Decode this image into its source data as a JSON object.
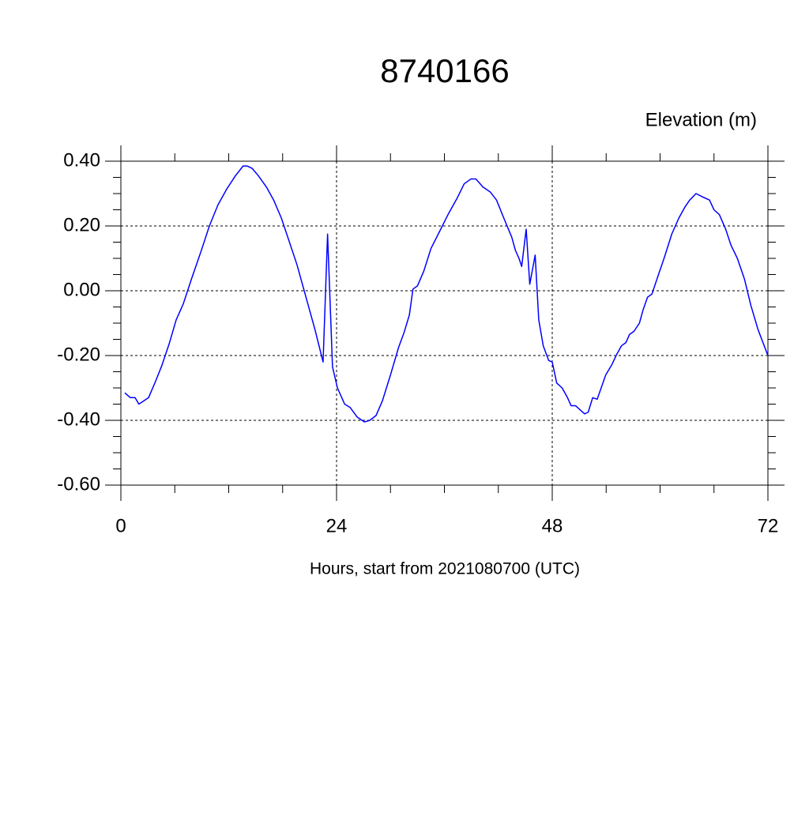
{
  "chart_data": {
    "type": "line",
    "title": "8740166",
    "y_label": "Elevation (m)",
    "x_label": "Hours, start from 2021080700 (UTC)",
    "x": [
      0.44,
      1.05,
      1.58,
      2.0,
      2.55,
      3.08,
      3.78,
      4.57,
      5.36,
      6.15,
      6.95,
      7.9,
      8.9,
      9.85,
      10.8,
      11.8,
      12.75,
      13.6,
      14.07,
      14.6,
      15.3,
      16.2,
      17.0,
      17.85,
      18.7,
      19.6,
      20.65,
      21.6,
      22.5,
      23.0,
      23.55,
      24.1,
      24.9,
      25.5,
      26.3,
      27.1,
      27.7,
      28.4,
      29.1,
      30.0,
      30.9,
      31.5,
      32.1,
      32.5,
      33.0,
      33.7,
      34.5,
      35.5,
      36.4,
      37.4,
      38.2,
      38.95,
      39.5,
      40.3,
      41.1,
      41.8,
      42.6,
      43.5,
      43.9,
      44.3,
      44.6,
      45.1,
      45.5,
      46.1,
      46.5,
      47.0,
      47.6,
      48.0,
      48.5,
      49.1,
      49.7,
      50.1,
      50.6,
      51.2,
      51.6,
      52.0,
      52.5,
      53.0,
      53.95,
      54.6,
      55.2,
      55.7,
      56.2,
      56.6,
      57.1,
      57.7,
      58.1,
      58.6,
      59.1,
      59.7,
      60.5,
      61.3,
      62.1,
      62.8,
      63.3,
      64.0,
      64.7,
      65.5,
      66.0,
      66.6,
      67.3,
      67.9,
      68.6,
      69.4,
      70.1,
      70.9,
      72.0
    ],
    "series": [
      {
        "color": "#0000ff",
        "values": [
          -0.315,
          -0.33,
          -0.33,
          -0.35,
          -0.34,
          -0.33,
          -0.285,
          -0.23,
          -0.165,
          -0.09,
          -0.04,
          0.04,
          0.12,
          0.2,
          0.265,
          0.315,
          0.355,
          0.385,
          0.385,
          0.378,
          0.355,
          0.32,
          0.28,
          0.225,
          0.155,
          0.08,
          -0.025,
          -0.12,
          -0.22,
          0.175,
          -0.235,
          -0.3,
          -0.35,
          -0.36,
          -0.39,
          -0.405,
          -0.4,
          -0.385,
          -0.34,
          -0.26,
          -0.175,
          -0.13,
          -0.075,
          0.005,
          0.015,
          0.06,
          0.13,
          0.185,
          0.235,
          0.285,
          0.33,
          0.345,
          0.345,
          0.32,
          0.305,
          0.28,
          0.225,
          0.165,
          0.125,
          0.1,
          0.075,
          0.19,
          0.02,
          0.11,
          -0.09,
          -0.17,
          -0.215,
          -0.22,
          -0.285,
          -0.3,
          -0.33,
          -0.355,
          -0.355,
          -0.37,
          -0.38,
          -0.375,
          -0.33,
          -0.335,
          -0.26,
          -0.23,
          -0.195,
          -0.17,
          -0.16,
          -0.135,
          -0.125,
          -0.1,
          -0.06,
          -0.02,
          -0.01,
          0.04,
          0.105,
          0.175,
          0.225,
          0.26,
          0.28,
          0.3,
          0.29,
          0.28,
          0.25,
          0.235,
          0.19,
          0.14,
          0.1,
          0.035,
          -0.045,
          -0.12,
          -0.2
        ]
      }
    ],
    "xlim": [
      0,
      72
    ],
    "ylim": [
      -0.6,
      0.4
    ],
    "xticks": [
      0,
      24,
      48,
      72
    ],
    "yticks": [
      {
        "value": -0.6,
        "label": "-0.60"
      },
      {
        "value": -0.4,
        "label": "-0.40"
      },
      {
        "value": -0.2,
        "label": "-0.20"
      },
      {
        "value": 0,
        "label": "0.00"
      },
      {
        "value": 0.2,
        "label": "0.20"
      },
      {
        "value": 0.4,
        "label": "0.40"
      }
    ],
    "xminorticks": [
      6,
      12,
      18,
      30,
      36,
      42,
      54,
      60,
      66
    ],
    "yminorticks": [
      -0.55,
      -0.5,
      -0.45,
      -0.35,
      -0.3,
      -0.25,
      -0.15,
      -0.1,
      -0.05,
      0.05,
      0.1,
      0.15,
      0.25,
      0.3,
      0.35
    ],
    "grid": true
  }
}
